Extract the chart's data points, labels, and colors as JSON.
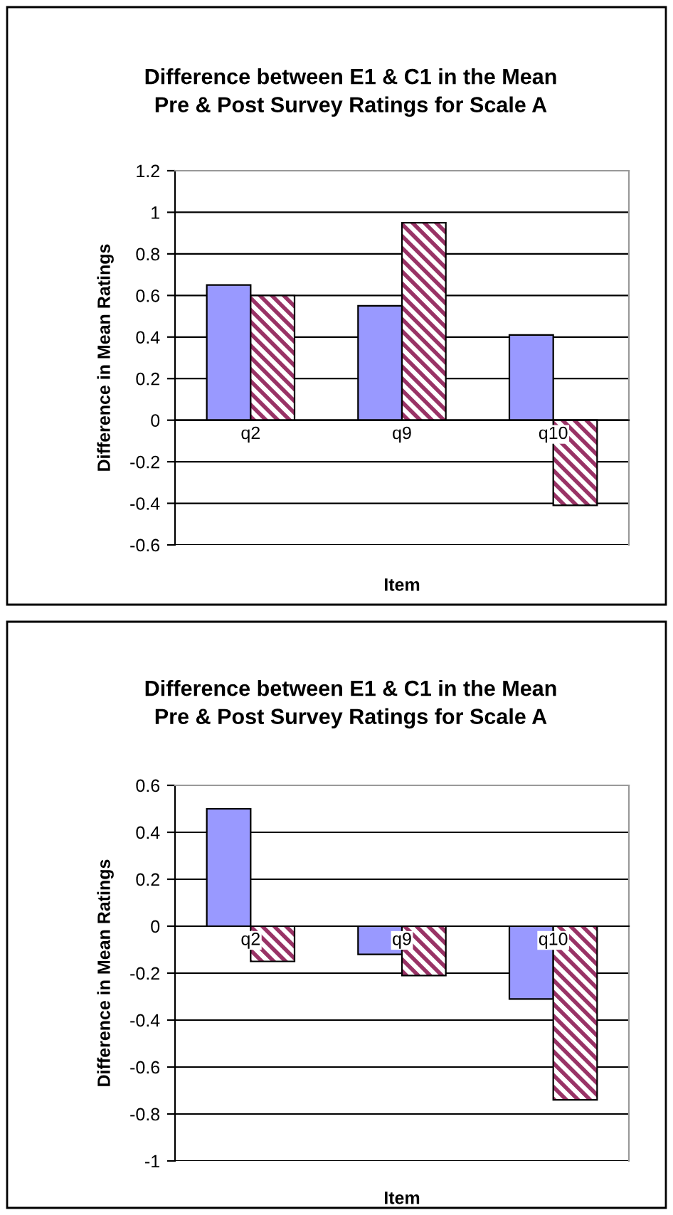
{
  "chart_data": [
    {
      "type": "bar",
      "title": "Difference between E1 & C1 in the Mean\nPre & Post Survey Ratings for Scale A",
      "xlabel": "Item",
      "ylabel": "Difference in Mean Ratings",
      "categories": [
        "q2",
        "q9",
        "q10"
      ],
      "series": [
        {
          "color": "#9999ff",
          "values": [
            0.65,
            0.55,
            0.41
          ]
        },
        {
          "color": "#993366",
          "values": [
            0.6,
            0.95,
            -0.41
          ]
        }
      ],
      "ylim": [
        -0.6,
        1.2
      ],
      "yticks": [
        -0.6,
        -0.4,
        -0.2,
        0,
        0.2,
        0.4,
        0.6,
        0.8,
        1,
        1.2
      ],
      "grid": "y",
      "legend": false
    },
    {
      "type": "bar",
      "title": "Difference between E1 & C1 in the Mean\nPre & Post Survey Ratings for Scale A",
      "xlabel": "Item",
      "ylabel": "Difference in Mean Ratings",
      "categories": [
        "q2",
        "q9",
        "q10"
      ],
      "series": [
        {
          "color": "#9999ff",
          "values": [
            0.5,
            -0.12,
            -0.31
          ]
        },
        {
          "color": "#993366",
          "values": [
            -0.15,
            -0.21,
            -0.74
          ]
        }
      ],
      "ylim": [
        -1,
        0.6
      ],
      "yticks": [
        -1,
        -0.8,
        -0.6,
        -0.4,
        -0.2,
        0,
        0.2,
        0.4,
        0.6
      ],
      "grid": "y",
      "legend": false
    }
  ]
}
